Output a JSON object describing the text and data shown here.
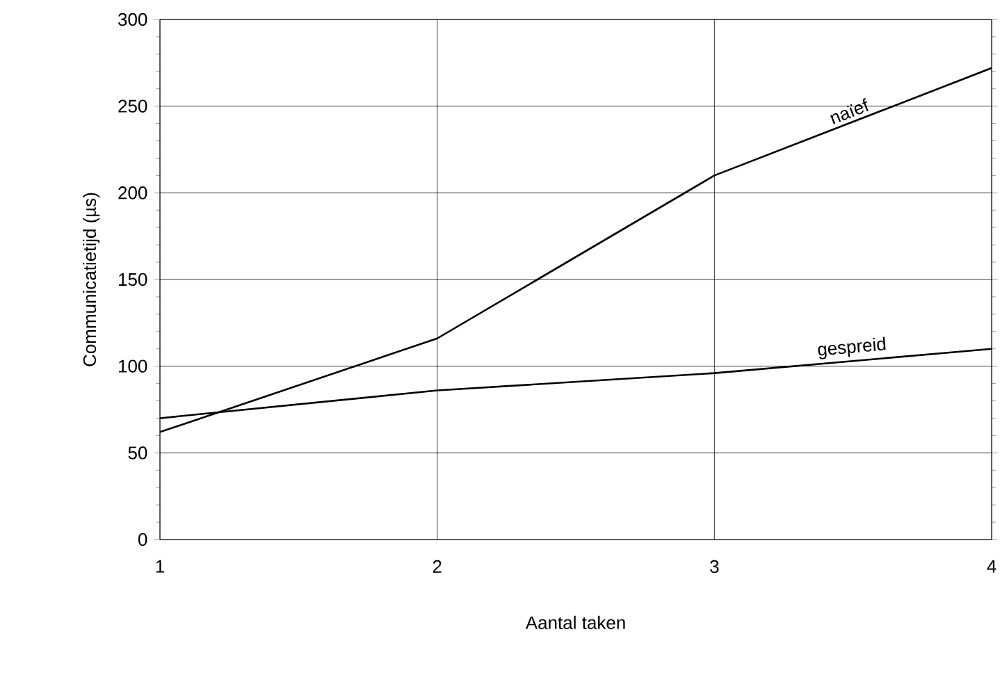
{
  "chart_data": {
    "type": "line",
    "xlabel": "Aantal taken",
    "ylabel": "Communicatietijd (µs)",
    "x": [
      1,
      2,
      3,
      4
    ],
    "series": [
      {
        "name": "naïef",
        "color": "#000000",
        "values": [
          62,
          116,
          210,
          272
        ]
      },
      {
        "name": "gespreid",
        "color": "#000000",
        "values": [
          70,
          86,
          96,
          110
        ]
      }
    ],
    "xlim": [
      1,
      4
    ],
    "xticks": [
      1,
      2,
      3,
      4
    ],
    "ylim": [
      0,
      300
    ],
    "yticks": [
      0,
      50,
      100,
      150,
      200,
      250,
      300
    ],
    "grid": true,
    "legend": false,
    "marker": "none",
    "line_style": "solid"
  }
}
